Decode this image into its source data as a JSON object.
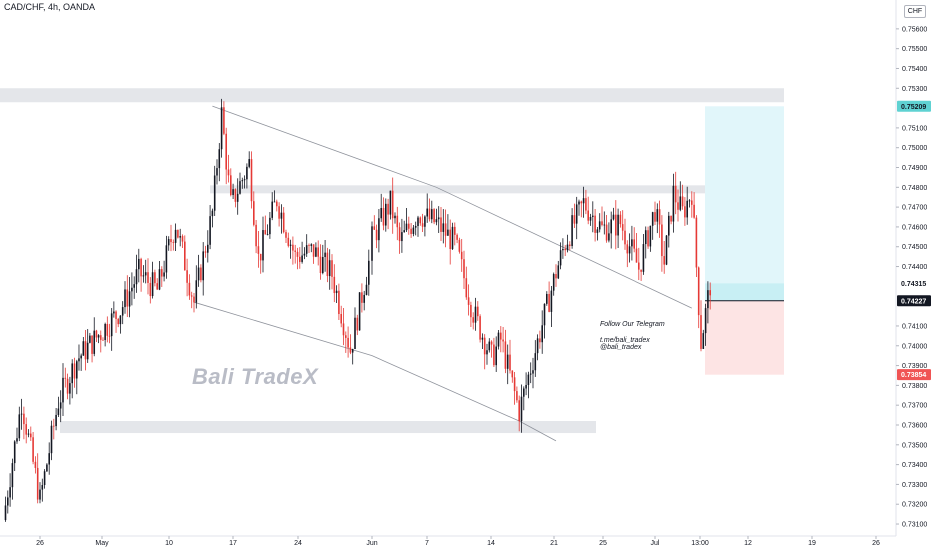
{
  "header": {
    "symbol": "CAD/CHF, 4h, OANDA",
    "currency": "CHF"
  },
  "watermark": "Bali TradeX",
  "promo": {
    "line1": "Follow Our Telegram",
    "line2": "t.me/bali_tradex",
    "line3": "@bali_tradex"
  },
  "colors": {
    "up": "#131722",
    "down": "#e53935",
    "target_zone": "#e1f6fa",
    "stop_zone": "#fde4e4",
    "resistance_zone": "#e4e6ea",
    "target_tag": "#5fd2d2",
    "stop_tag": "#f05454",
    "last_tag": "#131722"
  },
  "chart_data": {
    "type": "candlestick",
    "title": "CAD/CHF, 4h, OANDA",
    "y_axis": {
      "ticks": [
        "0.75600",
        "0.75500",
        "0.75400",
        "0.75300",
        "0.75100",
        "0.75000",
        "0.74900",
        "0.74800",
        "0.74700",
        "0.74600",
        "0.74500",
        "0.74400",
        "0.74100",
        "0.74000",
        "0.73900",
        "0.73800",
        "0.73700",
        "0.73600",
        "0.73500",
        "0.73400",
        "0.73300",
        "0.73200",
        "0.73100"
      ],
      "range": [
        0.7306,
        0.7566
      ]
    },
    "x_axis": {
      "ticks": [
        "26",
        "May",
        "10",
        "17",
        "24",
        "Jun",
        "7",
        "14",
        "21",
        "25",
        "Jul",
        "13:00",
        "12",
        "19",
        "26"
      ]
    },
    "price_tags": {
      "target": "0.75209",
      "last": "0.74315",
      "entry": "0.74227",
      "stop": "0.73854"
    },
    "levels": {
      "resistance_zone": [
        0.7521,
        0.7528
      ],
      "mid_zone": [
        0.7477,
        0.7481
      ],
      "support_zone": [
        0.7356,
        0.7362
      ]
    },
    "upper_trendline": [
      [
        "May 13",
        0.7521
      ],
      [
        "Jun 8",
        0.748
      ],
      [
        "Jul 5",
        0.7419
      ]
    ],
    "lower_trendline": [
      [
        "May 11",
        0.7422
      ],
      [
        "Jun 1",
        0.7395
      ],
      [
        "Jun 17",
        0.7362
      ],
      [
        "Jun 21",
        0.7352
      ]
    ],
    "position": {
      "type": "long",
      "entry": 0.74227,
      "target": 0.75209,
      "stop": 0.73854
    },
    "candles_path": [
      [
        "Apr 22",
        0.7312
      ],
      [
        "Apr 24",
        0.7372
      ],
      [
        "Apr 26",
        0.7322
      ],
      [
        "Apr 28",
        0.7372
      ],
      [
        "Apr 30",
        0.7393
      ],
      [
        "May 3",
        0.7418
      ],
      [
        "May 5",
        0.7437
      ],
      [
        "May 7",
        0.7428
      ],
      [
        "May 9",
        0.7462
      ],
      [
        "May 11",
        0.7422
      ],
      [
        "May 13",
        0.7467
      ],
      [
        "May 14",
        0.7517
      ],
      [
        "May 15",
        0.7471
      ],
      [
        "May 17",
        0.7492
      ],
      [
        "May 18",
        0.7444
      ],
      [
        "May 20",
        0.7474
      ],
      [
        "May 22",
        0.7445
      ],
      [
        "May 24",
        0.7448
      ],
      [
        "May 26",
        0.7436
      ],
      [
        "May 28",
        0.7398
      ],
      [
        "May 30",
        0.7442
      ],
      [
        "Jun 1",
        0.7454
      ],
      [
        "Jun 3",
        0.7472
      ],
      [
        "Jun 4",
        0.7452
      ],
      [
        "Jun 6",
        0.7467
      ],
      [
        "Jun 8",
        0.7462
      ],
      [
        "Jun 10",
        0.7452
      ],
      [
        "Jun 12",
        0.7417
      ],
      [
        "Jun 14",
        0.7394
      ],
      [
        "Jun 15",
        0.7403
      ],
      [
        "Jun 17",
        0.7367
      ],
      [
        "Jun 19",
        0.7402
      ],
      [
        "Jun 21",
        0.7437
      ],
      [
        "Jun 22",
        0.7452
      ],
      [
        "Jun 24",
        0.7472
      ],
      [
        "Jun 26",
        0.7459
      ],
      [
        "Jun 28",
        0.7462
      ],
      [
        "Jun 30",
        0.7439
      ],
      [
        "Jul 1",
        0.7469
      ],
      [
        "Jul 2",
        0.7442
      ],
      [
        "Jul 3",
        0.7477
      ],
      [
        "Jul 4",
        0.7467
      ],
      [
        "Jul 5",
        0.7478
      ],
      [
        "Jul 6",
        0.7402
      ],
      [
        "Jul 7",
        0.7431
      ]
    ]
  }
}
